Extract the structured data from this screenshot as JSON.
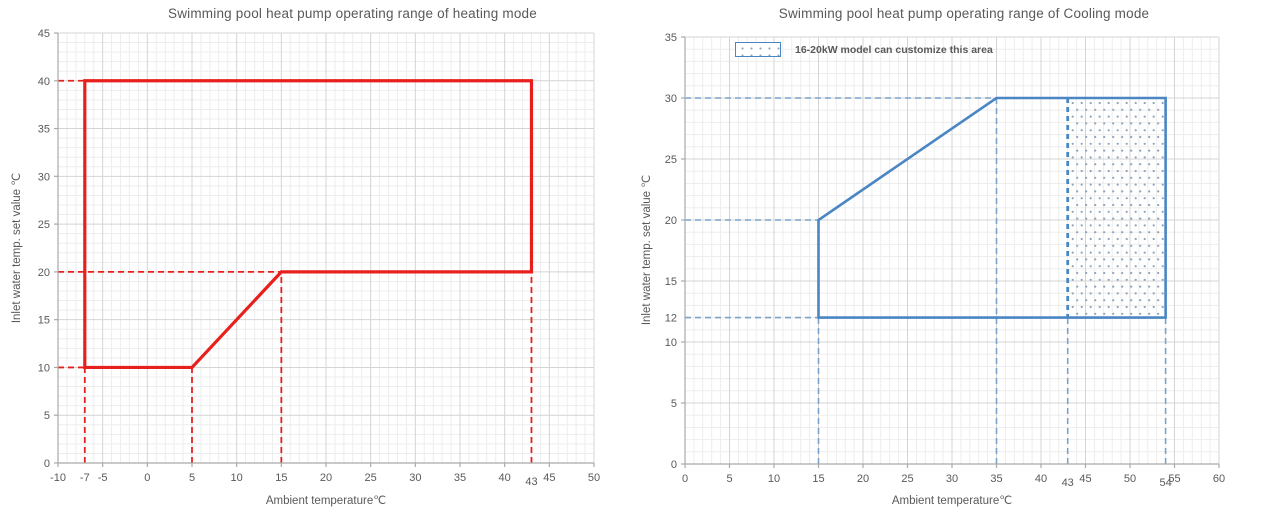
{
  "colors": {
    "heating_line": "#e8201d",
    "cooling_line": "#4a86c4",
    "cooling_guide": "#7ba3c8",
    "customize_dots": "#8fa3ba",
    "grid_minor": "#ededed",
    "grid_major": "#d4d4d4",
    "axis": "#a9a9a9",
    "text": "#595959"
  },
  "chart_data": [
    {
      "type": "area",
      "mode": "heating",
      "title": "Swimming pool heat pump operating range of heating mode",
      "xlabel": "Ambient temperature℃",
      "ylabel": "Inlet water temp. set value ℃",
      "xlim": [
        -10,
        50
      ],
      "ylim": [
        0,
        45
      ],
      "x_major_ticks": [
        -10,
        -5,
        0,
        5,
        10,
        15,
        20,
        25,
        30,
        35,
        40,
        45,
        50
      ],
      "x_extra_ticks": [
        {
          "value": -7,
          "lowered": false
        },
        {
          "value": 43,
          "lowered": true
        }
      ],
      "y_major_ticks": [
        0,
        5,
        10,
        15,
        20,
        25,
        30,
        35,
        40,
        45
      ],
      "y_extra_ticks": [],
      "minor_step": 1,
      "grid": "on",
      "line_color": "#e8201d",
      "guide_color": "#e8201d",
      "operating_polygon": [
        [
          -7,
          40
        ],
        [
          43,
          40
        ],
        [
          43,
          20
        ],
        [
          15,
          20
        ],
        [
          5,
          10
        ],
        [
          -7,
          10
        ]
      ],
      "guide_lines": [
        {
          "axis": "h",
          "value": 40,
          "from": -10,
          "to": -7
        },
        {
          "axis": "h",
          "value": 20,
          "from": -10,
          "to": 15
        },
        {
          "axis": "h",
          "value": 10,
          "from": -10,
          "to": -7
        },
        {
          "axis": "v",
          "value": -7,
          "from": 0,
          "to": 10
        },
        {
          "axis": "v",
          "value": 5,
          "from": 0,
          "to": 10
        },
        {
          "axis": "v",
          "value": 15,
          "from": 0,
          "to": 20
        },
        {
          "axis": "v",
          "value": 43,
          "from": 0,
          "to": 20
        }
      ]
    },
    {
      "type": "area",
      "mode": "cooling",
      "title": "Swimming pool heat pump operating range of Cooling mode",
      "xlabel": "Ambient temperature℃",
      "ylabel": "Inlet water temp. set value ℃",
      "xlim": [
        0,
        60
      ],
      "ylim": [
        0,
        35
      ],
      "x_major_ticks": [
        0,
        5,
        10,
        15,
        20,
        25,
        30,
        35,
        40,
        45,
        50,
        55,
        60
      ],
      "x_extra_ticks": [
        {
          "value": 43,
          "lowered": true
        },
        {
          "value": 54,
          "lowered": true
        }
      ],
      "y_major_ticks": [
        0,
        5,
        10,
        15,
        20,
        25,
        30,
        35
      ],
      "y_extra_ticks": [
        {
          "value": 12,
          "lowered": false
        }
      ],
      "minor_step": 1,
      "grid": "on",
      "line_color": "#4a86c4",
      "guide_color": "#7ba3c8",
      "operating_polygon": [
        [
          15,
          12
        ],
        [
          15,
          20
        ],
        [
          35,
          30
        ],
        [
          54,
          30
        ],
        [
          54,
          12
        ]
      ],
      "guide_lines": [
        {
          "axis": "h",
          "value": 30,
          "from": 0,
          "to": 35
        },
        {
          "axis": "h",
          "value": 20,
          "from": 0,
          "to": 15
        },
        {
          "axis": "h",
          "value": 12,
          "from": 0,
          "to": 15
        },
        {
          "axis": "v",
          "value": 15,
          "from": 0,
          "to": 12
        },
        {
          "axis": "v",
          "value": 35,
          "from": 0,
          "to": 30
        },
        {
          "axis": "v",
          "value": 43,
          "from": 0,
          "to": 12
        },
        {
          "axis": "v",
          "value": 54,
          "from": 0,
          "to": 12
        }
      ],
      "custom_area": {
        "x_range": [
          43,
          54
        ],
        "y_range": [
          12,
          30
        ]
      },
      "legend": {
        "label": "16-20kW model can customize this area"
      }
    }
  ]
}
